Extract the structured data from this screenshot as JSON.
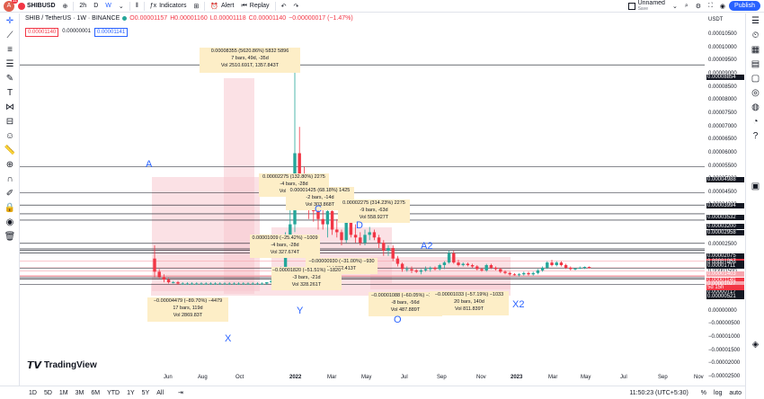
{
  "topbar": {
    "avatar_letter": "A",
    "badge": "11",
    "symbol": "SHIBUSD",
    "interval_active": "W",
    "intervals": [
      "2h",
      "D",
      "W"
    ],
    "indicators": "Indicators",
    "alert": "Alert",
    "replay": "Replay",
    "layout_name": "Unnamed",
    "save": "Save",
    "publish": "Publish"
  },
  "legend": {
    "title": "SHIB / TetherUS · 1W · BINANCE",
    "o": "O0.00001157",
    "h": "H0.00001160",
    "l": "L0.00001118",
    "c": "C0.00001140",
    "chg": "−0.00000017 (−1.47%)",
    "bid": "0.00001140",
    "spread": "0.00000001",
    "ask": "0.00001141"
  },
  "yaxis": {
    "currency": "USDT",
    "labels": [
      "0.00010500",
      "0.00010000",
      "0.00009500",
      "0.00009000",
      "0.00008500",
      "0.00008000",
      "0.00007500",
      "0.00007000",
      "0.00006500",
      "0.00006000",
      "0.00005500",
      "0.00005000",
      "0.00004500",
      "0.00004000",
      "0.00003500",
      "0.00003000",
      "0.00002500",
      "0.00002000",
      "0.00001500",
      "0.00001000",
      "0.00000500",
      "0.00000000",
      "−0.00000500",
      "−0.00001000",
      "−0.00001500",
      "−0.00002000",
      "−0.00002500"
    ],
    "boxes": [
      {
        "text": "0.00008854",
        "color": "#131722"
      },
      {
        "text": "0.00004988",
        "color": "#131722"
      },
      {
        "text": "0.00003994",
        "color": "#131722"
      },
      {
        "text": "0.00003532",
        "color": "#131722"
      },
      {
        "text": "0.00003200",
        "color": "#131722"
      },
      {
        "text": "0.00002958",
        "color": "#131722"
      },
      {
        "text": "0.00002075",
        "color": "#131722"
      },
      {
        "text": "0.00001867",
        "color": "#f23645"
      },
      {
        "text": "0.00001809",
        "color": "#131722"
      },
      {
        "text": "0.00001711",
        "color": "#131722"
      },
      {
        "text": "0.00001403",
        "color": "#f7a5ad"
      },
      {
        "text": "0.00001150",
        "color": "#f7a5ad"
      },
      {
        "text": "0.00001140",
        "color": "#f23645"
      },
      {
        "text": "0.00001027",
        "color": "#f7a5ad"
      },
      {
        "text": "0.00000855",
        "color": "#f7a5ad"
      },
      {
        "text": "0.00000833",
        "color": "#f7a5ad"
      },
      {
        "text": "0.00000822",
        "color": "#f7a5ad"
      },
      {
        "text": "0.00000776",
        "color": "#131722"
      },
      {
        "text": "0.00000717",
        "color": "#131722"
      },
      {
        "text": "0.00000521",
        "color": "#131722"
      }
    ],
    "countdown": "5d 15h"
  },
  "xaxis": {
    "labels": [
      "Jun",
      "Aug",
      "Oct",
      "2022",
      "Mar",
      "May",
      "Jul",
      "Sep",
      "Nov",
      "2023",
      "Mar",
      "May",
      "Jul",
      "Sep",
      "Nov"
    ]
  },
  "annotations": {
    "top1": [
      "0.00008355 (5620.86%) 5832 5896",
      "7 bars, 49d, -35d",
      "Vol 2510.691T, 1357.843T"
    ],
    "mid1": [
      "0.00002275 (132.80%) 2275",
      "-4 bars, -28d",
      "Vol 267.005T"
    ],
    "mid2": [
      "0.00001425 (68.18%) 1425",
      "-2 bars, -14d",
      "Vol 303.868T"
    ],
    "mid3": [
      "0.00002275 (314.23%) 2275",
      "-9 bars, -63d",
      "Vol 558.927T"
    ],
    "mid4": [
      "0.00001009 (−25.42%) −1009",
      "-4 bars, -28d",
      "Vol 327.674T"
    ],
    "mid5": [
      "−0.00000930 (−31.00%) −930",
      "Vol 502.413T"
    ],
    "mid6": [
      "−0.00001820 (−51.51%) −1820",
      "-3 bars, -21d",
      "Vol 328.261T"
    ],
    "low1": [
      "−0.00004479 (−89.70%) −4479",
      "17 bars, 119d",
      "Vol 2869.83T"
    ],
    "low2": [
      "−0.00001088 (−60.05%) −1088",
      "-8 bars, -56d",
      "Vol 487.889T"
    ],
    "low3": [
      "−0.00001033 (−57.19%) −1033",
      "20 bars, 140d",
      "Vol 811.839T"
    ]
  },
  "waves": [
    "A",
    "B",
    "C",
    "D",
    "A2",
    "X",
    "Y",
    "O",
    "X2"
  ],
  "bottombar": {
    "ranges": [
      "1D",
      "5D",
      "1M",
      "3M",
      "6M",
      "YTD",
      "1Y",
      "5Y",
      "All"
    ],
    "time": "11:50:23 (UTC+5:30)",
    "pct": "%",
    "log": "log",
    "auto": "auto"
  },
  "brand": "TradingView",
  "colors": {
    "up": "#26a69a",
    "down": "#f23645",
    "zone": "#f7c9cf",
    "accent": "#2962ff"
  },
  "chart_data": {
    "type": "candlestick",
    "title": "SHIB / TetherUS · 1W · BINANCE",
    "candles": [
      {
        "o": 1.5,
        "h": 2.0,
        "l": 0.8,
        "c": 1.0
      },
      {
        "o": 1.0,
        "h": 1.1,
        "l": 0.75,
        "c": 0.8
      },
      {
        "o": 0.8,
        "h": 0.9,
        "l": 0.6,
        "c": 0.7
      },
      {
        "o": 0.7,
        "h": 0.75,
        "l": 0.55,
        "c": 0.6
      },
      {
        "o": 0.6,
        "h": 0.65,
        "l": 0.55,
        "c": 0.6
      },
      {
        "o": 0.6,
        "h": 0.65,
        "l": 0.5,
        "c": 0.55
      },
      {
        "o": 0.55,
        "h": 0.6,
        "l": 0.5,
        "c": 0.55
      },
      {
        "o": 0.55,
        "h": 0.6,
        "l": 0.5,
        "c": 0.55
      },
      {
        "o": 0.55,
        "h": 0.6,
        "l": 0.5,
        "c": 0.55
      },
      {
        "o": 0.55,
        "h": 0.6,
        "l": 0.5,
        "c": 0.55
      },
      {
        "o": 0.55,
        "h": 0.6,
        "l": 0.5,
        "c": 0.55
      },
      {
        "o": 0.55,
        "h": 0.6,
        "l": 0.5,
        "c": 0.55
      },
      {
        "o": 0.55,
        "h": 0.6,
        "l": 0.5,
        "c": 0.55
      },
      {
        "o": 0.55,
        "h": 0.6,
        "l": 0.5,
        "c": 0.55
      },
      {
        "o": 0.55,
        "h": 0.6,
        "l": 0.5,
        "c": 0.55
      },
      {
        "o": 0.55,
        "h": 0.6,
        "l": 0.5,
        "c": 0.55
      },
      {
        "o": 0.55,
        "h": 0.6,
        "l": 0.5,
        "c": 0.55
      },
      {
        "o": 0.55,
        "h": 0.6,
        "l": 0.5,
        "c": 0.55
      },
      {
        "o": 0.55,
        "h": 0.6,
        "l": 0.5,
        "c": 0.55
      },
      {
        "o": 0.55,
        "h": 0.6,
        "l": 0.5,
        "c": 0.55
      },
      {
        "o": 0.55,
        "h": 0.6,
        "l": 0.5,
        "c": 0.55
      },
      {
        "o": 0.55,
        "h": 0.6,
        "l": 0.5,
        "c": 0.55
      },
      {
        "o": 0.55,
        "h": 0.6,
        "l": 0.5,
        "c": 0.55
      },
      {
        "o": 0.55,
        "h": 0.6,
        "l": 0.5,
        "c": 0.55
      },
      {
        "o": 0.55,
        "h": 0.6,
        "l": 0.5,
        "c": 0.6
      },
      {
        "o": 0.6,
        "h": 0.7,
        "l": 0.55,
        "c": 0.65
      },
      {
        "o": 0.65,
        "h": 0.7,
        "l": 0.6,
        "c": 0.65
      },
      {
        "o": 0.65,
        "h": 1.2,
        "l": 0.6,
        "c": 1.1
      },
      {
        "o": 1.1,
        "h": 2.5,
        "l": 1.0,
        "c": 2.4
      },
      {
        "o": 2.4,
        "h": 4.0,
        "l": 2.2,
        "c": 2.8
      },
      {
        "o": 2.8,
        "h": 8.85,
        "l": 2.5,
        "c": 5.5
      },
      {
        "o": 5.5,
        "h": 6.5,
        "l": 3.8,
        "c": 4.6
      },
      {
        "o": 4.6,
        "h": 5.0,
        "l": 3.5,
        "c": 4.0
      },
      {
        "o": 4.0,
        "h": 4.5,
        "l": 3.0,
        "c": 3.5
      },
      {
        "o": 3.5,
        "h": 3.9,
        "l": 2.9,
        "c": 3.3
      },
      {
        "o": 3.3,
        "h": 3.6,
        "l": 2.6,
        "c": 3.0
      },
      {
        "o": 3.0,
        "h": 3.4,
        "l": 2.6,
        "c": 2.8
      },
      {
        "o": 2.8,
        "h": 3.5,
        "l": 2.3,
        "c": 3.3
      },
      {
        "o": 3.3,
        "h": 3.7,
        "l": 2.4,
        "c": 2.6
      },
      {
        "o": 2.6,
        "h": 3.0,
        "l": 2.3,
        "c": 2.5
      },
      {
        "o": 2.5,
        "h": 2.6,
        "l": 2.0,
        "c": 2.2
      },
      {
        "o": 2.2,
        "h": 3.4,
        "l": 2.1,
        "c": 3.0
      },
      {
        "o": 3.0,
        "h": 3.2,
        "l": 2.3,
        "c": 2.4
      },
      {
        "o": 2.4,
        "h": 2.8,
        "l": 2.1,
        "c": 2.3
      },
      {
        "o": 2.3,
        "h": 2.5,
        "l": 2.0,
        "c": 2.1
      },
      {
        "o": 2.1,
        "h": 2.6,
        "l": 2.0,
        "c": 2.4
      },
      {
        "o": 2.4,
        "h": 2.7,
        "l": 2.2,
        "c": 2.5
      },
      {
        "o": 2.5,
        "h": 2.6,
        "l": 2.2,
        "c": 2.3
      },
      {
        "o": 2.3,
        "h": 2.4,
        "l": 1.9,
        "c": 2.1
      },
      {
        "o": 2.1,
        "h": 2.2,
        "l": 1.6,
        "c": 1.8
      },
      {
        "o": 1.8,
        "h": 2.0,
        "l": 1.6,
        "c": 1.9
      },
      {
        "o": 1.9,
        "h": 2.0,
        "l": 1.4,
        "c": 1.5
      },
      {
        "o": 1.5,
        "h": 1.6,
        "l": 1.2,
        "c": 1.3
      },
      {
        "o": 1.3,
        "h": 1.35,
        "l": 1.0,
        "c": 1.1
      },
      {
        "o": 1.1,
        "h": 1.2,
        "l": 1.0,
        "c": 1.1
      },
      {
        "o": 1.1,
        "h": 1.2,
        "l": 0.95,
        "c": 1.05
      },
      {
        "o": 1.05,
        "h": 1.1,
        "l": 0.95,
        "c": 1.0
      },
      {
        "o": 1.0,
        "h": 1.1,
        "l": 0.9,
        "c": 1.05
      },
      {
        "o": 1.05,
        "h": 1.2,
        "l": 1.0,
        "c": 1.1
      },
      {
        "o": 1.1,
        "h": 1.2,
        "l": 1.0,
        "c": 1.15
      },
      {
        "o": 1.15,
        "h": 1.2,
        "l": 1.05,
        "c": 1.1
      },
      {
        "o": 1.1,
        "h": 1.3,
        "l": 1.05,
        "c": 1.25
      },
      {
        "o": 1.25,
        "h": 1.4,
        "l": 1.1,
        "c": 1.35
      },
      {
        "o": 1.35,
        "h": 1.8,
        "l": 1.3,
        "c": 1.7
      },
      {
        "o": 1.7,
        "h": 1.8,
        "l": 1.3,
        "c": 1.35
      },
      {
        "o": 1.35,
        "h": 1.45,
        "l": 1.2,
        "c": 1.25
      },
      {
        "o": 1.25,
        "h": 1.35,
        "l": 1.2,
        "c": 1.3
      },
      {
        "o": 1.3,
        "h": 1.35,
        "l": 1.2,
        "c": 1.25
      },
      {
        "o": 1.25,
        "h": 1.3,
        "l": 1.15,
        "c": 1.2
      },
      {
        "o": 1.2,
        "h": 1.25,
        "l": 1.05,
        "c": 1.1
      },
      {
        "o": 1.1,
        "h": 1.15,
        "l": 1.0,
        "c": 1.05
      },
      {
        "o": 1.05,
        "h": 1.3,
        "l": 1.0,
        "c": 1.25
      },
      {
        "o": 1.25,
        "h": 1.3,
        "l": 1.1,
        "c": 1.15
      },
      {
        "o": 1.15,
        "h": 1.2,
        "l": 1.05,
        "c": 1.1
      },
      {
        "o": 1.1,
        "h": 1.15,
        "l": 0.95,
        "c": 1.0
      },
      {
        "o": 1.0,
        "h": 1.05,
        "l": 0.9,
        "c": 0.95
      },
      {
        "o": 0.95,
        "h": 1.0,
        "l": 0.85,
        "c": 0.9
      },
      {
        "o": 0.9,
        "h": 0.95,
        "l": 0.85,
        "c": 0.88
      },
      {
        "o": 0.88,
        "h": 0.95,
        "l": 0.82,
        "c": 0.9
      },
      {
        "o": 0.9,
        "h": 1.0,
        "l": 0.85,
        "c": 0.95
      },
      {
        "o": 0.95,
        "h": 1.0,
        "l": 0.85,
        "c": 0.9
      },
      {
        "o": 0.9,
        "h": 1.0,
        "l": 0.85,
        "c": 0.95
      },
      {
        "o": 0.95,
        "h": 1.1,
        "l": 0.9,
        "c": 1.05
      },
      {
        "o": 1.05,
        "h": 1.2,
        "l": 1.0,
        "c": 1.15
      },
      {
        "o": 1.15,
        "h": 1.4,
        "l": 1.1,
        "c": 1.35
      },
      {
        "o": 1.35,
        "h": 1.45,
        "l": 1.2,
        "c": 1.25
      },
      {
        "o": 1.25,
        "h": 1.4,
        "l": 1.2,
        "c": 1.35
      },
      {
        "o": 1.35,
        "h": 1.4,
        "l": 1.2,
        "c": 1.25
      },
      {
        "o": 1.25,
        "h": 1.3,
        "l": 1.1,
        "c": 1.15
      },
      {
        "o": 1.15,
        "h": 1.2,
        "l": 1.05,
        "c": 1.1
      },
      {
        "o": 1.1,
        "h": 1.15,
        "l": 1.05,
        "c": 1.12
      },
      {
        "o": 1.12,
        "h": 1.2,
        "l": 1.1,
        "c": 1.15
      },
      {
        "o": 1.15,
        "h": 1.2,
        "l": 1.1,
        "c": 1.18
      },
      {
        "o": 1.18,
        "h": 1.2,
        "l": 1.12,
        "c": 1.14
      }
    ],
    "ylim": [
      -2.5e-05,
      0.000105
    ]
  }
}
